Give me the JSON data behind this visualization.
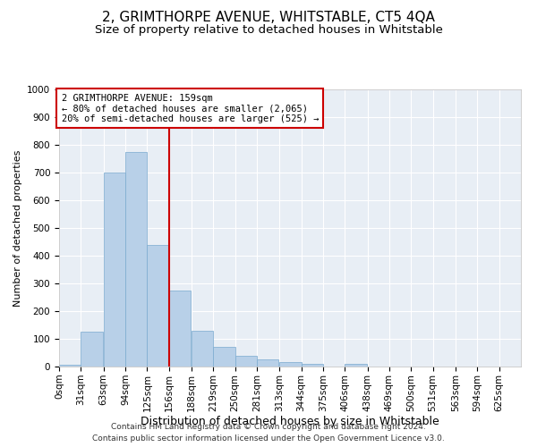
{
  "title": "2, GRIMTHORPE AVENUE, WHITSTABLE, CT5 4QA",
  "subtitle": "Size of property relative to detached houses in Whitstable",
  "xlabel": "Distribution of detached houses by size in Whitstable",
  "ylabel": "Number of detached properties",
  "bar_color": "#b8d0e8",
  "bar_edge_color": "#7aaacf",
  "background_color": "#e8eef5",
  "grid_color": "#ffffff",
  "categories": [
    "0sqm",
    "31sqm",
    "63sqm",
    "94sqm",
    "125sqm",
    "156sqm",
    "188sqm",
    "219sqm",
    "250sqm",
    "281sqm",
    "313sqm",
    "344sqm",
    "375sqm",
    "406sqm",
    "438sqm",
    "469sqm",
    "500sqm",
    "531sqm",
    "563sqm",
    "594sqm",
    "625sqm"
  ],
  "values": [
    5,
    125,
    700,
    775,
    440,
    275,
    130,
    70,
    40,
    25,
    15,
    10,
    0,
    10,
    0,
    0,
    0,
    0,
    0,
    0,
    0
  ],
  "bin_edges": [
    0,
    31,
    63,
    94,
    125,
    156,
    188,
    219,
    250,
    281,
    313,
    344,
    375,
    406,
    438,
    469,
    500,
    531,
    563,
    594,
    625
  ],
  "vline_x": 156,
  "vline_color": "#cc0000",
  "ylim": [
    0,
    1000
  ],
  "yticks": [
    0,
    100,
    200,
    300,
    400,
    500,
    600,
    700,
    800,
    900,
    1000
  ],
  "annotation_title": "2 GRIMTHORPE AVENUE: 159sqm",
  "annotation_line1": "← 80% of detached houses are smaller (2,065)",
  "annotation_line2": "20% of semi-detached houses are larger (525) →",
  "annotation_box_color": "#cc0000",
  "footer_line1": "Contains HM Land Registry data © Crown copyright and database right 2024.",
  "footer_line2": "Contains public sector information licensed under the Open Government Licence v3.0.",
  "title_fontsize": 11,
  "subtitle_fontsize": 9.5,
  "xlabel_fontsize": 9,
  "ylabel_fontsize": 8,
  "tick_fontsize": 7.5,
  "footer_fontsize": 6.5,
  "annotation_fontsize": 7.5
}
